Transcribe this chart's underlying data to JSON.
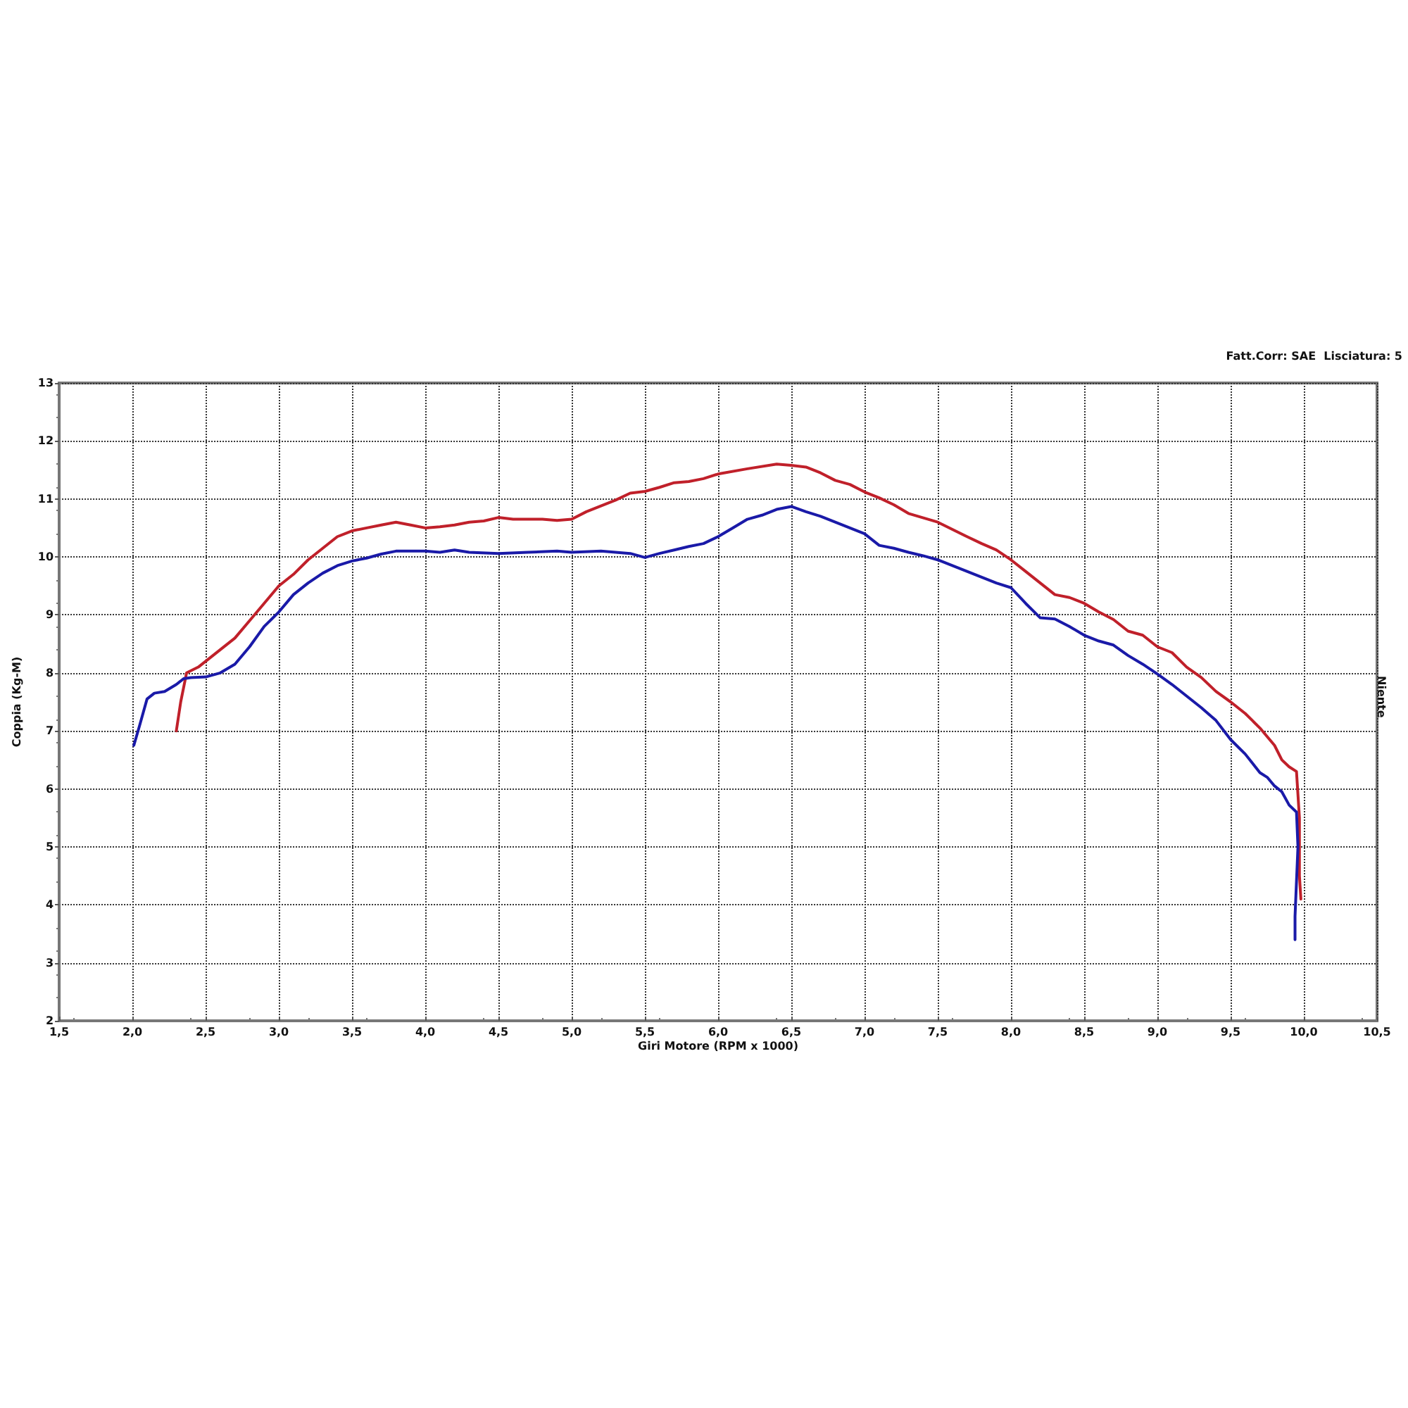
{
  "chart_data": {
    "type": "line",
    "xlabel": "Giri Motore (RPM x 1000)",
    "ylabel": "Coppia (Kg-M)",
    "annotations": [
      "Fatt.Corr: SAE  Lisciatura: 5",
      "Niente"
    ],
    "series": [
      {
        "color": "#c0202a",
        "x": [
          2.3,
          2.33,
          2.37,
          2.45,
          2.5,
          2.6,
          2.7,
          2.8,
          2.9,
          3.0,
          3.1,
          3.2,
          3.3,
          3.4,
          3.5,
          3.6,
          3.7,
          3.8,
          3.9,
          4.0,
          4.1,
          4.2,
          4.3,
          4.4,
          4.5,
          4.6,
          4.7,
          4.8,
          4.9,
          5.0,
          5.1,
          5.2,
          5.3,
          5.4,
          5.5,
          5.6,
          5.7,
          5.8,
          5.9,
          6.0,
          6.2,
          6.4,
          6.5,
          6.6,
          6.7,
          6.8,
          6.9,
          7.0,
          7.1,
          7.2,
          7.3,
          7.5,
          7.7,
          7.8,
          7.9,
          8.0,
          8.1,
          8.2,
          8.3,
          8.4,
          8.5,
          8.6,
          8.7,
          8.8,
          8.9,
          9.0,
          9.1,
          9.2,
          9.3,
          9.4,
          9.5,
          9.6,
          9.7,
          9.8,
          9.85,
          9.9,
          9.95,
          9.97,
          9.97,
          9.98
        ],
        "values": [
          7.0,
          7.5,
          8.0,
          8.1,
          8.2,
          8.4,
          8.6,
          8.9,
          9.2,
          9.5,
          9.7,
          9.95,
          10.15,
          10.35,
          10.45,
          10.5,
          10.55,
          10.6,
          10.55,
          10.5,
          10.52,
          10.55,
          10.6,
          10.62,
          10.68,
          10.65,
          10.65,
          10.65,
          10.63,
          10.65,
          10.78,
          10.88,
          10.98,
          11.1,
          11.13,
          11.2,
          11.28,
          11.3,
          11.35,
          11.43,
          11.52,
          11.6,
          11.58,
          11.55,
          11.45,
          11.32,
          11.25,
          11.12,
          11.02,
          10.9,
          10.75,
          10.6,
          10.35,
          10.23,
          10.12,
          9.95,
          9.75,
          9.55,
          9.35,
          9.3,
          9.2,
          9.05,
          8.92,
          8.72,
          8.65,
          8.45,
          8.35,
          8.1,
          7.92,
          7.68,
          7.5,
          7.3,
          7.05,
          6.75,
          6.5,
          6.38,
          6.3,
          5.5,
          4.5,
          4.1
        ]
      },
      {
        "color": "#1a1aa8",
        "x": [
          2.01,
          2.05,
          2.1,
          2.15,
          2.22,
          2.3,
          2.35,
          2.4,
          2.5,
          2.6,
          2.7,
          2.8,
          2.9,
          3.0,
          3.1,
          3.2,
          3.3,
          3.4,
          3.5,
          3.6,
          3.7,
          3.8,
          3.9,
          4.0,
          4.1,
          4.2,
          4.3,
          4.5,
          4.7,
          4.9,
          5.0,
          5.2,
          5.3,
          5.4,
          5.5,
          5.6,
          5.7,
          5.8,
          5.9,
          6.0,
          6.1,
          6.2,
          6.3,
          6.4,
          6.5,
          6.6,
          6.7,
          6.8,
          6.9,
          7.0,
          7.1,
          7.2,
          7.3,
          7.4,
          7.5,
          7.6,
          7.7,
          7.8,
          7.9,
          8.0,
          8.1,
          8.2,
          8.3,
          8.4,
          8.5,
          8.6,
          8.7,
          8.8,
          8.9,
          9.0,
          9.1,
          9.2,
          9.3,
          9.4,
          9.5,
          9.6,
          9.7,
          9.75,
          9.8,
          9.85,
          9.9,
          9.95,
          9.96,
          9.95,
          9.94,
          9.94
        ],
        "values": [
          6.75,
          7.1,
          7.55,
          7.65,
          7.68,
          7.8,
          7.9,
          7.92,
          7.93,
          8.0,
          8.15,
          8.45,
          8.8,
          9.05,
          9.35,
          9.55,
          9.72,
          9.85,
          9.93,
          9.98,
          10.05,
          10.1,
          10.1,
          10.1,
          10.08,
          10.12,
          10.08,
          10.06,
          10.08,
          10.1,
          10.08,
          10.1,
          10.08,
          10.06,
          9.99,
          10.06,
          10.12,
          10.18,
          10.23,
          10.35,
          10.5,
          10.65,
          10.72,
          10.82,
          10.87,
          10.78,
          10.7,
          10.6,
          10.5,
          10.4,
          10.2,
          10.15,
          10.08,
          10.02,
          9.95,
          9.85,
          9.75,
          9.65,
          9.55,
          9.47,
          9.2,
          8.95,
          8.93,
          8.8,
          8.65,
          8.55,
          8.48,
          8.3,
          8.15,
          7.98,
          7.8,
          7.6,
          7.4,
          7.18,
          6.85,
          6.6,
          6.28,
          6.2,
          6.05,
          5.95,
          5.72,
          5.6,
          5.0,
          4.4,
          3.8,
          3.4
        ]
      }
    ],
    "xlim": [
      1.5,
      10.5
    ],
    "xticks": [
      {
        "value": 1.5,
        "label": "1,5"
      },
      {
        "value": 2,
        "label": "2,0"
      },
      {
        "value": 2.5,
        "label": "2,5"
      },
      {
        "value": 3,
        "label": "3,0"
      },
      {
        "value": 3.5,
        "label": "3,5"
      },
      {
        "value": 4,
        "label": "4,0"
      },
      {
        "value": 4.5,
        "label": "4,5"
      },
      {
        "value": 5,
        "label": "5,0"
      },
      {
        "value": 5.5,
        "label": "5,5"
      },
      {
        "value": 6,
        "label": "6,0"
      },
      {
        "value": 6.5,
        "label": "6,5"
      },
      {
        "value": 7,
        "label": "7,0"
      },
      {
        "value": 7.5,
        "label": "7,5"
      },
      {
        "value": 8,
        "label": "8,0"
      },
      {
        "value": 8.5,
        "label": "8,5"
      },
      {
        "value": 9,
        "label": "9,0"
      },
      {
        "value": 9.5,
        "label": "9,5"
      },
      {
        "value": 10,
        "label": "10,0"
      },
      {
        "value": 10.5,
        "label": "10,5"
      }
    ],
    "ylim": [
      2,
      13
    ],
    "yticks": [
      2,
      3,
      4,
      5,
      6,
      7,
      8,
      9,
      10,
      11,
      12,
      13
    ],
    "grid": true,
    "marker": "none",
    "line_style": "solid"
  }
}
